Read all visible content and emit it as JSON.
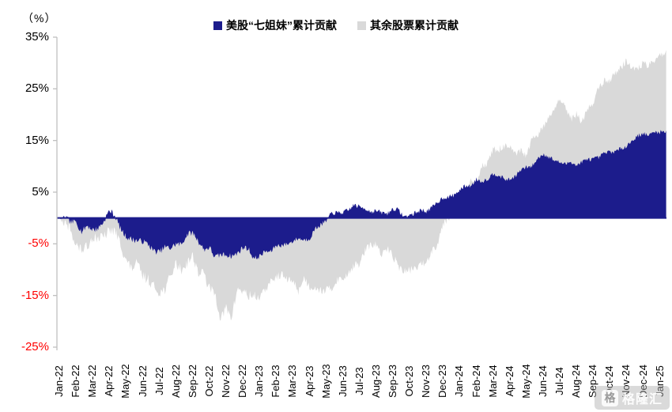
{
  "header": {
    "unit_label": "（%）"
  },
  "chart_data": {
    "type": "area",
    "title": "",
    "ylabel": "（%）",
    "ylim": [
      -25,
      35
    ],
    "baseline": 0,
    "grid": false,
    "legend_position": "top-center",
    "x": [
      "Jan-22",
      "Feb-22",
      "Mar-22",
      "Apr-22",
      "May-22",
      "Jun-22",
      "Jul-22",
      "Aug-22",
      "Sep-22",
      "Oct-22",
      "Nov-22",
      "Dec-22",
      "Jan-23",
      "Feb-23",
      "Mar-23",
      "Apr-23",
      "May-23",
      "Jun-23",
      "Jul-23",
      "Aug-23",
      "Sep-23",
      "Oct-23",
      "Nov-23",
      "Dec-23",
      "Jan-24",
      "Feb-24",
      "Mar-24",
      "Apr-24",
      "May-24",
      "Jun-24",
      "Jul-24",
      "Aug-24",
      "Sep-24",
      "Oct-24",
      "Nov-24",
      "Dec-24",
      "Jan-25"
    ],
    "series": [
      {
        "name": "美股“七姐妹”累计贡献",
        "color": "#1c1c8c",
        "values": [
          0,
          -1.5,
          -2,
          0.5,
          -3.5,
          -5,
          -6.5,
          -5,
          -3.5,
          -6.5,
          -7,
          -6,
          -7.5,
          -5.5,
          -4.5,
          -3.5,
          -0.5,
          1.5,
          2,
          1.5,
          1.5,
          0.5,
          1.5,
          3.5,
          5,
          7,
          8,
          8,
          9.5,
          12,
          11,
          10.5,
          11.5,
          13,
          14,
          16,
          16.5
        ],
        "end_value": 17.5
      },
      {
        "name": "其余股票累计贡献",
        "color": "#d9d9d9",
        "values": [
          0,
          -4,
          -5,
          -2,
          -7.5,
          -11.5,
          -13.5,
          -10,
          -7.5,
          -14,
          -19,
          -13.5,
          -16,
          -11.5,
          -13,
          -12.5,
          -13,
          -11.5,
          -8.5,
          -6,
          -7.5,
          -10,
          -9,
          -2,
          3,
          7.5,
          12,
          13.5,
          13,
          18.5,
          22,
          19,
          23,
          27.5,
          29.5,
          30,
          31
        ],
        "end_value": 32
      }
    ]
  },
  "axes": {
    "y_ticks": [
      {
        "label": "35%",
        "value": 35,
        "color": "#000000"
      },
      {
        "label": "25%",
        "value": 25,
        "color": "#000000"
      },
      {
        "label": "15%",
        "value": 15,
        "color": "#000000"
      },
      {
        "label": "5%",
        "value": 5,
        "color": "#000000"
      },
      {
        "label": "-5%",
        "value": -5,
        "color": "#ff0000"
      },
      {
        "label": "-15%",
        "value": -15,
        "color": "#ff0000"
      },
      {
        "label": "-25%",
        "value": -25,
        "color": "#ff0000"
      }
    ],
    "axis_color": "#bfbfbf",
    "zero_line_color": "#1c1c8c"
  },
  "watermark": {
    "icon_glyph": "格",
    "text": "格隆汇"
  }
}
